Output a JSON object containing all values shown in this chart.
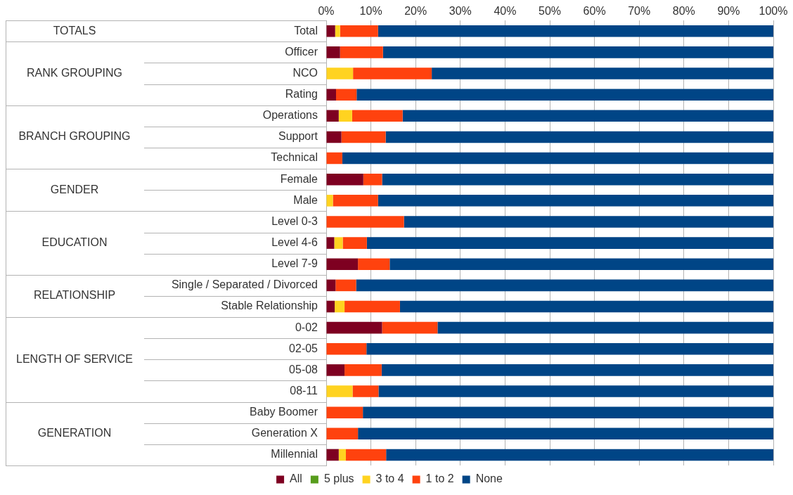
{
  "chart_data": {
    "type": "bar",
    "orientation": "horizontal",
    "stacked": true,
    "categories": [
      "Total",
      "Officer",
      "NCO",
      "Rating",
      "Operations",
      "Support",
      "Technical",
      "Female",
      "Male",
      "Level 0-3",
      "Level 4-6",
      "Level 7-9",
      "Single / Separated / Divorced",
      "Stable Relationship",
      "0-02",
      "02-05",
      "05-08",
      "08-11",
      "Baby Boomer",
      "Generation X",
      "Millennial"
    ],
    "series": [
      {
        "name": "All",
        "color": "#7e0021",
        "values": [
          2.0,
          3.1,
          0,
          2.2,
          2.8,
          3.4,
          0,
          8.3,
          0,
          0,
          1.8,
          7.1,
          2.1,
          1.9,
          12.5,
          0,
          4.1,
          0,
          0,
          0,
          2.8
        ]
      },
      {
        "name": "5 plus",
        "color": "#579d1c",
        "values": [
          0,
          0,
          0,
          0,
          0,
          0,
          0,
          0,
          0,
          0,
          0,
          0,
          0,
          0,
          0,
          0,
          0,
          0,
          0,
          0,
          0
        ]
      },
      {
        "name": "3 to 4",
        "color": "#ffd320",
        "values": [
          1.1,
          0,
          6.0,
          0,
          3.0,
          0,
          0,
          0,
          1.5,
          0,
          1.9,
          0,
          0,
          2.2,
          0,
          0,
          0,
          5.9,
          0,
          0,
          1.6
        ]
      },
      {
        "name": "1 to 2",
        "color": "#ff420e",
        "values": [
          8.5,
          9.6,
          17.6,
          4.6,
          11.3,
          9.9,
          3.6,
          4.2,
          10.1,
          17.4,
          5.4,
          7.1,
          4.6,
          12.4,
          12.4,
          9.0,
          8.3,
          5.8,
          8.2,
          7.1,
          9.0
        ]
      },
      {
        "name": "None",
        "color": "#004586",
        "values": [
          88.4,
          87.3,
          76.4,
          93.2,
          82.9,
          86.7,
          96.4,
          87.5,
          88.4,
          82.6,
          90.9,
          85.8,
          93.3,
          83.5,
          75.1,
          91.0,
          87.6,
          88.3,
          91.8,
          92.9,
          86.6
        ]
      }
    ],
    "xlim": [
      0,
      100
    ],
    "xticks": [
      {
        "value": 0,
        "label": "0%"
      },
      {
        "value": 10,
        "label": "10%"
      },
      {
        "value": 20,
        "label": "20%"
      },
      {
        "value": 30,
        "label": "30%"
      },
      {
        "value": 40,
        "label": "40%"
      },
      {
        "value": 50,
        "label": "50%"
      },
      {
        "value": 60,
        "label": "60%"
      },
      {
        "value": 70,
        "label": "70%"
      },
      {
        "value": 80,
        "label": "80%"
      },
      {
        "value": 90,
        "label": "90%"
      },
      {
        "value": 100,
        "label": "100%"
      }
    ],
    "grid": "x",
    "legend": "bottom",
    "annotations": [
      "TOTALS",
      "RANK GROUPING",
      "BRANCH GROUPING",
      "GENDER",
      "EDUCATION",
      "RELATIONSHIP",
      "LENGTH OF SERVICE",
      "GENERATION"
    ]
  }
}
